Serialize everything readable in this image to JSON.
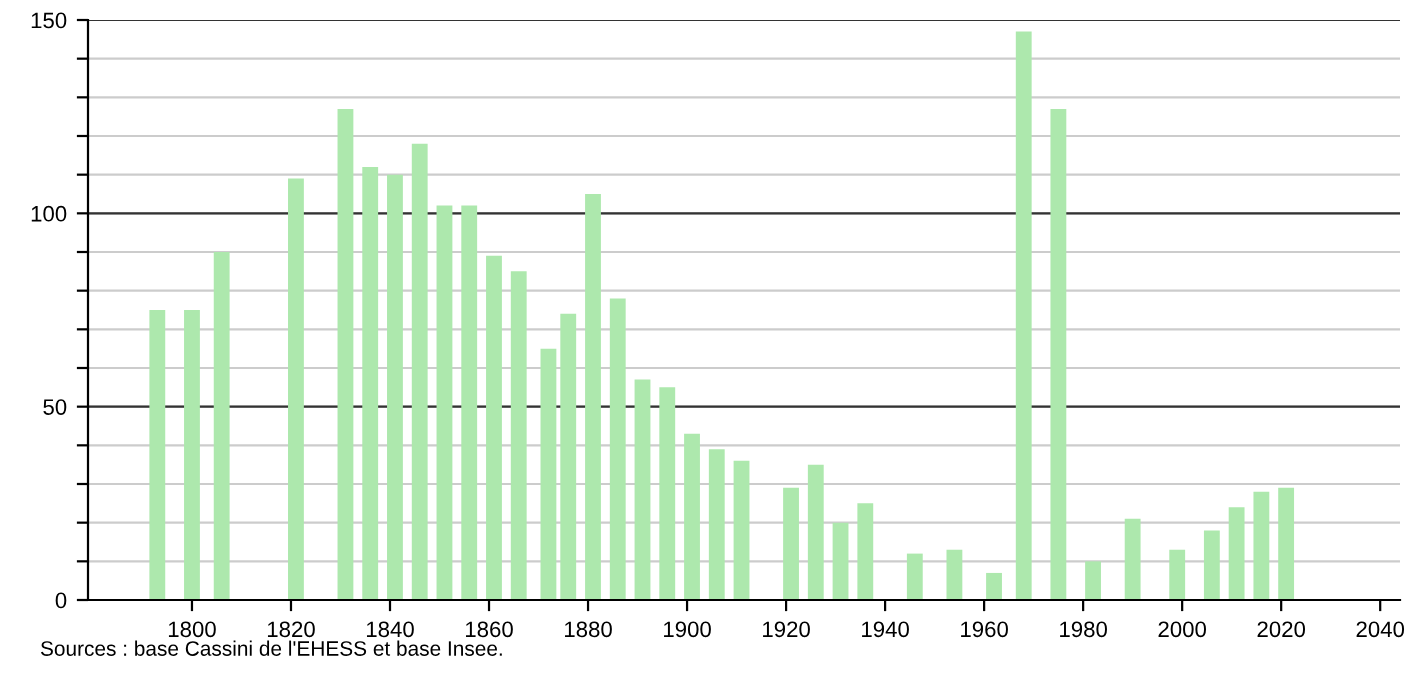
{
  "chart_data": {
    "type": "bar",
    "x": [
      1793,
      1800,
      1806,
      1821,
      1831,
      1836,
      1841,
      1846,
      1851,
      1856,
      1861,
      1866,
      1872,
      1876,
      1881,
      1886,
      1891,
      1896,
      1901,
      1906,
      1911,
      1921,
      1926,
      1931,
      1936,
      1946,
      1954,
      1962,
      1968,
      1975,
      1982,
      1990,
      1999,
      2006,
      2011,
      2016,
      2021
    ],
    "values": [
      75,
      75,
      90,
      109,
      127,
      112,
      110,
      118,
      102,
      102,
      89,
      85,
      65,
      74,
      105,
      78,
      57,
      55,
      43,
      39,
      36,
      29,
      35,
      20,
      25,
      12,
      13,
      7,
      147,
      127,
      10,
      21,
      13,
      18,
      24,
      28,
      29
    ],
    "color": "#ade8ad",
    "xlim": [
      1779,
      2044
    ],
    "xticks": [
      1800,
      1820,
      1840,
      1860,
      1880,
      1900,
      1920,
      1940,
      1960,
      1980,
      2000,
      2020,
      2040
    ],
    "ylim": [
      0,
      150
    ],
    "yticks": [
      0,
      {
        "value": 10,
        "label": null
      },
      {
        "value": 20,
        "label": null
      },
      {
        "value": 30,
        "label": null
      },
      {
        "value": 40,
        "label": null
      },
      50,
      {
        "value": 60,
        "label": null
      },
      {
        "value": 70,
        "label": null
      },
      {
        "value": 80,
        "label": null
      },
      {
        "value": 90,
        "label": null
      },
      100,
      {
        "value": 110,
        "label": null
      },
      {
        "value": 120,
        "label": null
      },
      {
        "value": 130,
        "label": null
      },
      {
        "value": 140,
        "label": null
      },
      150
    ],
    "grid": "y",
    "annotations": [
      "Sources : base Cassini de l'EHESS et base Insee."
    ]
  }
}
